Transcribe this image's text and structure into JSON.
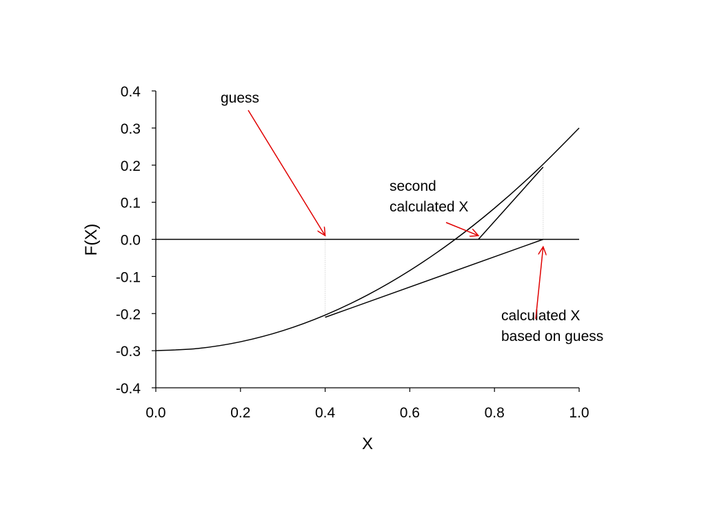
{
  "chart_data": {
    "type": "line",
    "title": "",
    "xlabel": "X",
    "ylabel": "F(X)",
    "xlim": [
      0.0,
      1.0
    ],
    "ylim": [
      -0.4,
      0.4
    ],
    "x_ticks": [
      "0.0",
      "0.2",
      "0.4",
      "0.6",
      "0.8",
      "1.0"
    ],
    "y_ticks": [
      "0.4",
      "0.3",
      "0.2",
      "0.1",
      "0.0",
      "-0.1",
      "-0.2",
      "-0.3",
      "-0.4"
    ],
    "grid": false,
    "series": [
      {
        "x": [
          0.0,
          0.1,
          0.2,
          0.3,
          0.4,
          0.5,
          0.6,
          0.7,
          0.8,
          0.9,
          1.0
        ],
        "y": [
          -0.3,
          -0.294,
          -0.276,
          -0.246,
          -0.204,
          -0.15,
          -0.084,
          -0.006,
          0.084,
          0.186,
          0.3
        ]
      },
      {
        "x": [
          0.4,
          0.915
        ],
        "y": [
          -0.21,
          0.0
        ]
      },
      {
        "x": [
          0.762,
          0.915
        ],
        "y": [
          0.0,
          0.195
        ]
      },
      {
        "x": [
          0.0,
          1.0
        ],
        "y": [
          0.0,
          0.0
        ]
      }
    ],
    "reference_lines": [
      {
        "x": [
          0.4,
          0.4
        ],
        "y": [
          0.0,
          -0.21
        ]
      },
      {
        "x": [
          0.915,
          0.915
        ],
        "y": [
          0.0,
          0.195
        ]
      }
    ],
    "annotations": [
      {
        "lines": [
          "guess"
        ],
        "target": [
          0.4,
          0.01
        ]
      },
      {
        "lines": [
          "second",
          "calculated X"
        ],
        "target": [
          0.762,
          0.01
        ]
      },
      {
        "lines": [
          "calculated X",
          "based on guess"
        ],
        "target": [
          0.915,
          -0.02
        ]
      }
    ],
    "colors": {
      "curve": "#000000",
      "arrow": "#e00000",
      "guide": "#c0c0c0"
    }
  }
}
